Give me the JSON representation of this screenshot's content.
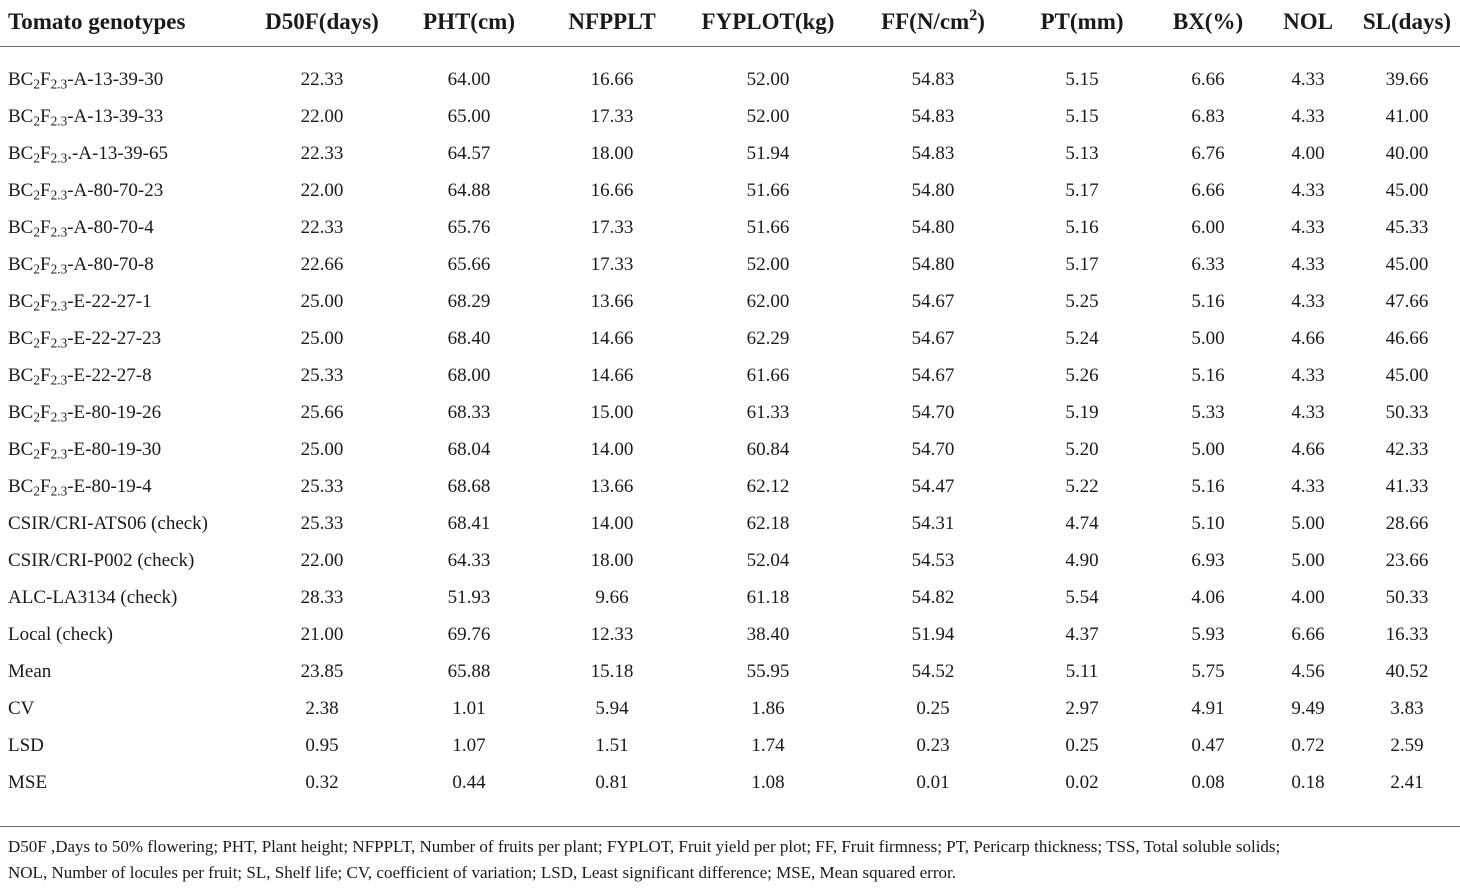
{
  "table": {
    "headers": [
      {
        "pre": "Tomato genotypes",
        "sup": "",
        "post": ""
      },
      {
        "pre": "D50F(days)",
        "sup": "",
        "post": ""
      },
      {
        "pre": "PHT(cm)",
        "sup": "",
        "post": ""
      },
      {
        "pre": "NFPPLT",
        "sup": "",
        "post": ""
      },
      {
        "pre": "FYPLOT(kg)",
        "sup": "",
        "post": ""
      },
      {
        "pre": "FF(N/cm",
        "sup": "2",
        "post": ")"
      },
      {
        "pre": "PT(mm)",
        "sup": "",
        "post": ""
      },
      {
        "pre": "BX(%)",
        "sup": "",
        "post": ""
      },
      {
        "pre": "NOL",
        "sup": "",
        "post": ""
      },
      {
        "pre": "SL(days)",
        "sup": "",
        "post": ""
      }
    ],
    "rows": [
      {
        "name": {
          "p1": "BC",
          "s1": "2",
          "p2": "F",
          "s2": "2.3",
          "p3": "-A-13-39-30"
        },
        "values": [
          "22.33",
          "64.00",
          "16.66",
          "52.00",
          "54.83",
          "5.15",
          "6.66",
          "4.33",
          "39.66"
        ]
      },
      {
        "name": {
          "p1": "BC",
          "s1": "2",
          "p2": "F",
          "s2": "2.3",
          "p3": "-A-13-39-33"
        },
        "values": [
          "22.00",
          "65.00",
          "17.33",
          "52.00",
          "54.83",
          "5.15",
          "6.83",
          "4.33",
          "41.00"
        ]
      },
      {
        "name": {
          "p1": "BC",
          "s1": "2",
          "p2": "F",
          "s2": "2.3",
          "p3": ".-A-13-39-65"
        },
        "values": [
          "22.33",
          "64.57",
          "18.00",
          "51.94",
          "54.83",
          "5.13",
          "6.76",
          "4.00",
          "40.00"
        ]
      },
      {
        "name": {
          "p1": "BC",
          "s1": "2",
          "p2": "F",
          "s2": "2.3",
          "p3": "-A-80-70-23"
        },
        "values": [
          "22.00",
          "64.88",
          "16.66",
          "51.66",
          "54.80",
          "5.17",
          "6.66",
          "4.33",
          "45.00"
        ]
      },
      {
        "name": {
          "p1": "BC",
          "s1": "2",
          "p2": "F",
          "s2": "2.3",
          "p3": "-A-80-70-4"
        },
        "values": [
          "22.33",
          "65.76",
          "17.33",
          "51.66",
          "54.80",
          "5.16",
          "6.00",
          "4.33",
          "45.33"
        ]
      },
      {
        "name": {
          "p1": "BC",
          "s1": "2",
          "p2": "F",
          "s2": "2.3",
          "p3": "-A-80-70-8"
        },
        "values": [
          "22.66",
          "65.66",
          "17.33",
          "52.00",
          "54.80",
          "5.17",
          "6.33",
          "4.33",
          "45.00"
        ]
      },
      {
        "name": {
          "p1": "BC",
          "s1": "2",
          "p2": "F",
          "s2": "2.3",
          "p3": "-E-22-27-1"
        },
        "values": [
          "25.00",
          "68.29",
          "13.66",
          "62.00",
          "54.67",
          "5.25",
          "5.16",
          "4.33",
          "47.66"
        ]
      },
      {
        "name": {
          "p1": "BC",
          "s1": "2",
          "p2": "F",
          "s2": "2.3",
          "p3": "-E-22-27-23"
        },
        "values": [
          "25.00",
          "68.40",
          "14.66",
          "62.29",
          "54.67",
          "5.24",
          "5.00",
          "4.66",
          "46.66"
        ]
      },
      {
        "name": {
          "p1": "BC",
          "s1": "2",
          "p2": "F",
          "s2": "2.3",
          "p3": "-E-22-27-8"
        },
        "values": [
          "25.33",
          "68.00",
          "14.66",
          "61.66",
          "54.67",
          "5.26",
          "5.16",
          "4.33",
          "45.00"
        ]
      },
      {
        "name": {
          "p1": "BC",
          "s1": "2",
          "p2": "F",
          "s2": "2.3",
          "p3": "-E-80-19-26"
        },
        "values": [
          "25.66",
          "68.33",
          "15.00",
          "61.33",
          "54.70",
          "5.19",
          "5.33",
          "4.33",
          "50.33"
        ]
      },
      {
        "name": {
          "p1": "BC",
          "s1": "2",
          "p2": "F",
          "s2": "2.3",
          "p3": "-E-80-19-30"
        },
        "values": [
          "25.00",
          "68.04",
          "14.00",
          "60.84",
          "54.70",
          "5.20",
          "5.00",
          "4.66",
          "42.33"
        ]
      },
      {
        "name": {
          "p1": "BC",
          "s1": "2",
          "p2": "F",
          "s2": "2.3",
          "p3": "-E-80-19-4"
        },
        "values": [
          "25.33",
          "68.68",
          "13.66",
          "62.12",
          "54.47",
          "5.22",
          "5.16",
          "4.33",
          "41.33"
        ]
      },
      {
        "name": {
          "p1": "CSIR/CRI-ATS06 (check)",
          "s1": "",
          "p2": "",
          "s2": "",
          "p3": ""
        },
        "values": [
          "25.33",
          "68.41",
          "14.00",
          "62.18",
          "54.31",
          "4.74",
          "5.10",
          "5.00",
          "28.66"
        ]
      },
      {
        "name": {
          "p1": "CSIR/CRI-P002 (check)",
          "s1": "",
          "p2": "",
          "s2": "",
          "p3": ""
        },
        "values": [
          "22.00",
          "64.33",
          "18.00",
          "52.04",
          "54.53",
          "4.90",
          "6.93",
          "5.00",
          "23.66"
        ]
      },
      {
        "name": {
          "p1": "ALC-LA3134 (check)",
          "s1": "",
          "p2": "",
          "s2": "",
          "p3": ""
        },
        "values": [
          "28.33",
          "51.93",
          "9.66",
          "61.18",
          "54.82",
          "5.54",
          "4.06",
          "4.00",
          "50.33"
        ]
      },
      {
        "name": {
          "p1": "Local (check)",
          "s1": "",
          "p2": "",
          "s2": "",
          "p3": ""
        },
        "values": [
          "21.00",
          "69.76",
          "12.33",
          "38.40",
          "51.94",
          "4.37",
          "5.93",
          "6.66",
          "16.33"
        ]
      },
      {
        "name": {
          "p1": "Mean",
          "s1": "",
          "p2": "",
          "s2": "",
          "p3": ""
        },
        "values": [
          "23.85",
          "65.88",
          "15.18",
          "55.95",
          "54.52",
          "5.11",
          "5.75",
          "4.56",
          "40.52"
        ]
      },
      {
        "name": {
          "p1": "CV",
          "s1": "",
          "p2": "",
          "s2": "",
          "p3": ""
        },
        "values": [
          "2.38",
          "1.01",
          "5.94",
          "1.86",
          "0.25",
          "2.97",
          "4.91",
          "9.49",
          "3.83"
        ]
      },
      {
        "name": {
          "p1": "LSD",
          "s1": "",
          "p2": "",
          "s2": "",
          "p3": ""
        },
        "values": [
          "0.95",
          "1.07",
          "1.51",
          "1.74",
          "0.23",
          "0.25",
          "0.47",
          "0.72",
          "2.59"
        ]
      },
      {
        "name": {
          "p1": "MSE",
          "s1": "",
          "p2": "",
          "s2": "",
          "p3": ""
        },
        "values": [
          "0.32",
          "0.44",
          "0.81",
          "1.08",
          "0.01",
          "0.02",
          "0.08",
          "0.18",
          "2.41"
        ]
      }
    ]
  },
  "footnote": {
    "line1": "D50F ,Days to 50% flowering; PHT, Plant height; NFPPLT, Number of fruits per plant; FYPLOT, Fruit yield per plot; FF, Fruit firmness; PT, Pericarp thickness; TSS, Total soluble solids;",
    "line2": "NOL, Number of locules per fruit; SL, Shelf life; CV, coefficient of variation; LSD, Least significant difference; MSE, Mean squared error."
  }
}
